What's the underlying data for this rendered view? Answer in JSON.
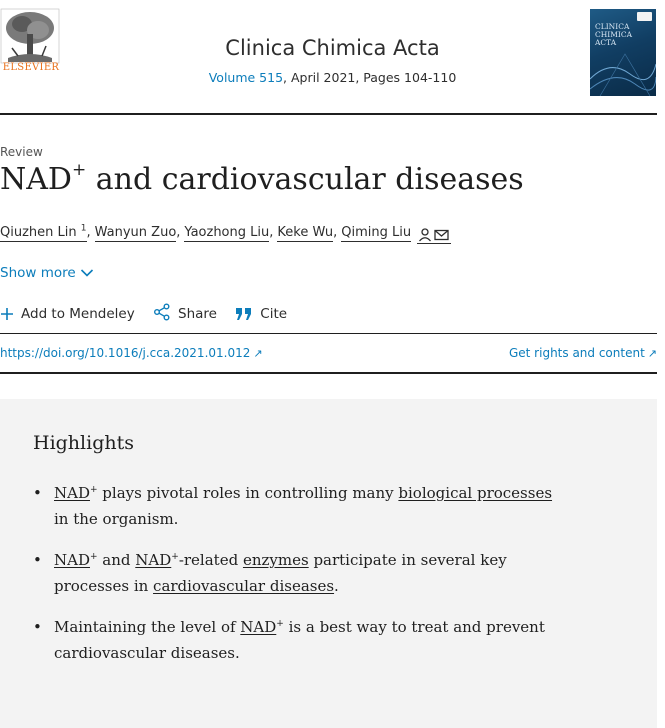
{
  "header": {
    "publisher": "ELSEVIER",
    "journal_title": "Clinica Chimica Acta",
    "volume_link": "Volume 515",
    "issue_info": ", April 2021, Pages 104-110",
    "cover_title": "CLINICA CHIMICA ACTA"
  },
  "article": {
    "type": "Review",
    "title_part1": "NAD",
    "title_sup": "+",
    "title_part2": " and cardiovascular diseases",
    "authors": [
      {
        "name": "Qiuzhen Lin",
        "sup": "1"
      },
      {
        "name": "Wanyun Zuo"
      },
      {
        "name": "Yaozhong Liu"
      },
      {
        "name": "Keke Wu"
      },
      {
        "name": "Qiming Liu"
      }
    ],
    "show_more": "Show more",
    "actions": {
      "mendeley": "Add to Mendeley",
      "share": "Share",
      "cite": "Cite"
    },
    "doi": "https://doi.org/10.1016/j.cca.2021.01.012",
    "rights": "Get rights and content"
  },
  "highlights": {
    "heading": "Highlights",
    "items": [
      {
        "a": "NAD",
        "b": "+",
        "c": " plays pivotal roles in controlling many ",
        "d": "biological processes",
        "e": " in the organism."
      },
      {
        "a": "NAD",
        "b": "+",
        "c": " and ",
        "d": "NAD",
        "e": "+",
        "f": "-related ",
        "g": "enzymes",
        "h": " participate in several key processes in ",
        "i": "cardiovascular diseases",
        "j": "."
      },
      {
        "a": "Maintaining the level of ",
        "b": "NAD",
        "c": "+",
        "d": " is a best way to treat and prevent cardiovascular diseases."
      }
    ]
  },
  "colors": {
    "link": "#0c7dbb",
    "publisher_orange": "#e9711c",
    "highlights_bg": "#f3f3f3"
  },
  "icons": [
    "elsevier-tree-logo",
    "journal-cover",
    "person-icon",
    "mail-icon",
    "chevron-down-icon",
    "plus-icon",
    "share-icon",
    "quote-icon",
    "external-arrow-icon"
  ]
}
